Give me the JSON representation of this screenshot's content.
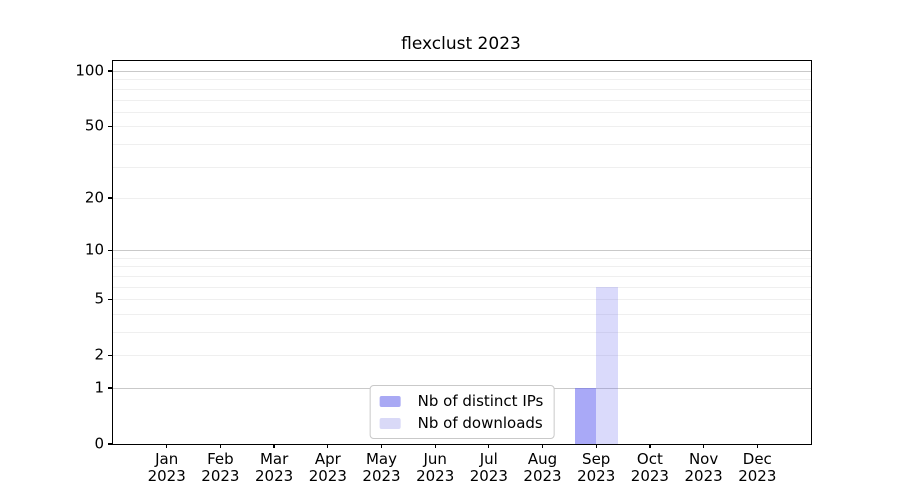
{
  "chart_data": {
    "type": "bar",
    "title": "flexclust 2023",
    "categories": [
      "Jan",
      "Feb",
      "Mar",
      "Apr",
      "May",
      "Jun",
      "Jul",
      "Aug",
      "Sep",
      "Oct",
      "Nov",
      "Dec"
    ],
    "year_label": "2023",
    "series": [
      {
        "name": "Nb of distinct IPs",
        "color": "#a9a9f4",
        "fill": "rgba(99,99,240,0.55)",
        "values": [
          0,
          0,
          0,
          0,
          0,
          0,
          0,
          0,
          1,
          0,
          0,
          0
        ]
      },
      {
        "name": "Nb of downloads",
        "color": "#d9d9f7",
        "fill": "rgba(99,99,240,0.24)",
        "values": [
          0,
          0,
          0,
          0,
          0,
          0,
          0,
          0,
          6,
          0,
          0,
          0
        ]
      }
    ],
    "yscale": "log1p",
    "ylim": [
      0,
      113
    ],
    "ytick_values": [
      0,
      1,
      2,
      5,
      10,
      20,
      50,
      100
    ],
    "ytick_labels": [
      "0",
      "1",
      "2",
      "5",
      "10",
      "20",
      "50",
      "100"
    ],
    "major_gridlines": [
      1,
      10,
      100
    ],
    "minor_gridlines": [
      2,
      3,
      4,
      5,
      6,
      7,
      8,
      9,
      20,
      30,
      40,
      50,
      60,
      70,
      80,
      90
    ],
    "grid": true,
    "legend_position": "bottom-center"
  },
  "colors": {
    "background": "#ffffff",
    "axis": "#000000",
    "text": "#000000",
    "grid_major": "#c9c9c9",
    "grid_minor": "#efefef",
    "legend_border": "#c9c9c9"
  }
}
